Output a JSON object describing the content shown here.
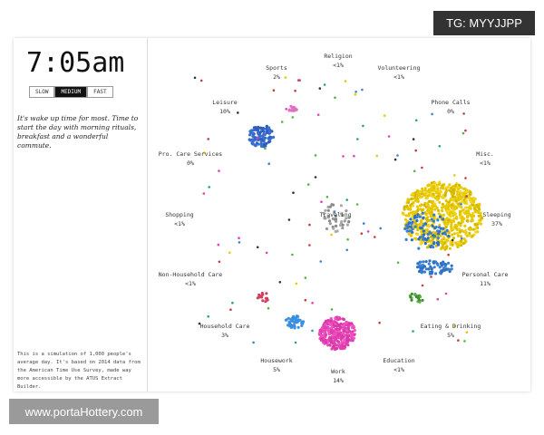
{
  "header": {
    "time": "7:05am",
    "speeds": [
      "SLOW",
      "MEDIUM",
      "FAST"
    ],
    "active_speed": "MEDIUM"
  },
  "description": "It's wake up time for most. Time to start the day with morning rituals, breakfast and a wonderful commute.",
  "activities": [
    {
      "label": "Religion",
      "share": "<1%"
    },
    {
      "label": "Sports",
      "share": "2%"
    },
    {
      "label": "Volunteering",
      "share": "<1%"
    },
    {
      "label": "Leisure",
      "share": "10%"
    },
    {
      "label": "Phone Calls",
      "share": "0%"
    },
    {
      "label": "Pro. Care Services",
      "share": "0%"
    },
    {
      "label": "Misc.",
      "share": "<1%"
    },
    {
      "label": "Shopping",
      "share": "<1%"
    },
    {
      "label": "Traveling"
    },
    {
      "label": "Sleeping",
      "share": "37%"
    },
    {
      "label": "Non-Household Care",
      "share": "<1%"
    },
    {
      "label": "Personal Care",
      "share": "11%"
    },
    {
      "label": "Household Care",
      "share": "3%"
    },
    {
      "label": "Eating & Drinking",
      "share": "5%"
    },
    {
      "label": "Housework",
      "share": "5%"
    },
    {
      "label": "Work",
      "share": "14%"
    },
    {
      "label": "Education",
      "share": "<1%"
    }
  ],
  "footnote": "This is a simulation of 1,000 people's average day. It's based on 2014 data from the American Time Use Survey, made way more accessible by the ATUS Extract Builder.",
  "watermarks": {
    "top": "TG: MYYJJPP",
    "bottom": "www.portaHottery.com"
  }
}
